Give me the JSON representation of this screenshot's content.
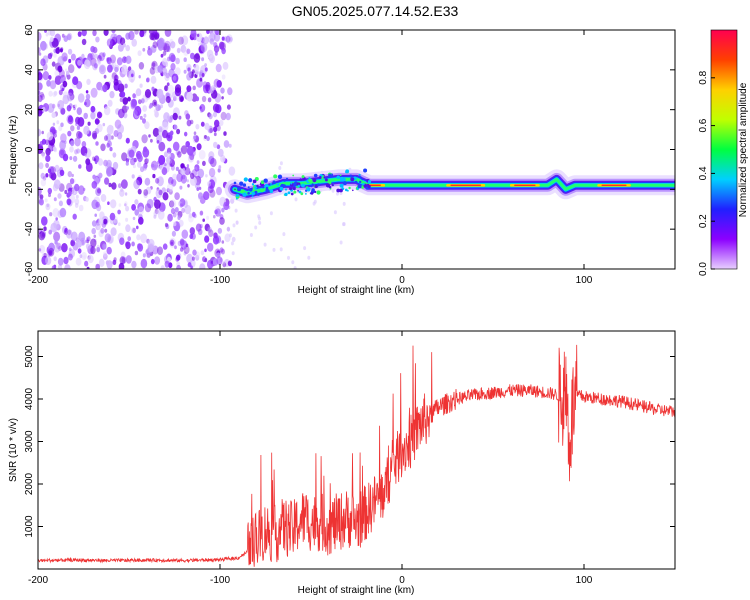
{
  "title": "GN05.2025.077.14.52.E33",
  "chart_data": [
    {
      "type": "heatmap",
      "title": "GN05.2025.077.14.52.E33",
      "xlabel": "Height of straight line (km)",
      "ylabel": "Frequency (Hz)",
      "xlim": [
        -200,
        150
      ],
      "ylim": [
        -60,
        60
      ],
      "x_ticks": [
        -200,
        -100,
        0,
        100
      ],
      "y_ticks": [
        -60,
        -40,
        -20,
        0,
        20,
        40,
        60
      ],
      "colorbar": {
        "label": "Normalized spectral amplitude",
        "range": [
          0,
          1
        ],
        "ticks": [
          "0.0",
          "0.2",
          "0.4",
          "0.6",
          "0.8"
        ],
        "colors": [
          "#e8d0ff",
          "#8c00ff",
          "#2020ff",
          "#00d0ff",
          "#00ff40",
          "#c0ff00",
          "#ffd000",
          "#ff4000",
          "#ff0050"
        ]
      },
      "noise_region_x": [
        -200,
        -92
      ],
      "signal_track": [
        {
          "x": -92,
          "y": -20
        },
        {
          "x": -85,
          "y": -22
        },
        {
          "x": -75,
          "y": -20
        },
        {
          "x": -65,
          "y": -17
        },
        {
          "x": -55,
          "y": -17
        },
        {
          "x": -45,
          "y": -16
        },
        {
          "x": -35,
          "y": -15
        },
        {
          "x": -25,
          "y": -15
        },
        {
          "x": -18,
          "y": -18
        },
        {
          "x": -10,
          "y": -18
        },
        {
          "x": 0,
          "y": -18
        },
        {
          "x": 20,
          "y": -18
        },
        {
          "x": 60,
          "y": -18
        },
        {
          "x": 80,
          "y": -18
        },
        {
          "x": 85,
          "y": -15
        },
        {
          "x": 90,
          "y": -20
        },
        {
          "x": 95,
          "y": -18
        },
        {
          "x": 120,
          "y": -18
        },
        {
          "x": 150,
          "y": -18
        }
      ]
    },
    {
      "type": "line",
      "xlabel": "Height of straight line (km)",
      "ylabel": "SNR (10 * v/v)",
      "xlim": [
        -200,
        150
      ],
      "ylim": [
        0,
        5600
      ],
      "x_ticks": [
        -200,
        -100,
        0,
        100
      ],
      "y_ticks": [
        1000,
        2000,
        3000,
        4000,
        5000
      ],
      "color": "#ee3333",
      "series": [
        {
          "x": [
            -200,
            -180,
            -160,
            -140,
            -120,
            -100,
            -90,
            -85,
            -80,
            -75,
            -70,
            -65,
            -60,
            -55,
            -50,
            -45,
            -40,
            -35,
            -30,
            -25,
            -20,
            -15,
            -10,
            -5,
            0,
            5,
            10,
            15,
            20,
            25,
            30,
            40,
            50,
            60,
            70,
            80,
            85,
            88,
            90,
            92,
            94,
            96,
            100,
            110,
            120,
            130,
            140,
            150
          ],
          "values": [
            200,
            210,
            200,
            210,
            200,
            220,
            260,
            400,
            700,
            900,
            800,
            1000,
            900,
            1200,
            1100,
            1100,
            1000,
            1100,
            1200,
            1100,
            1300,
            1600,
            1800,
            2400,
            2800,
            3000,
            3400,
            3600,
            3800,
            3900,
            4000,
            4100,
            4150,
            4200,
            4200,
            4150,
            4100,
            4000,
            4300,
            3000,
            3800,
            4100,
            4050,
            4000,
            3950,
            3850,
            3750,
            3700
          ]
        }
      ]
    }
  ]
}
